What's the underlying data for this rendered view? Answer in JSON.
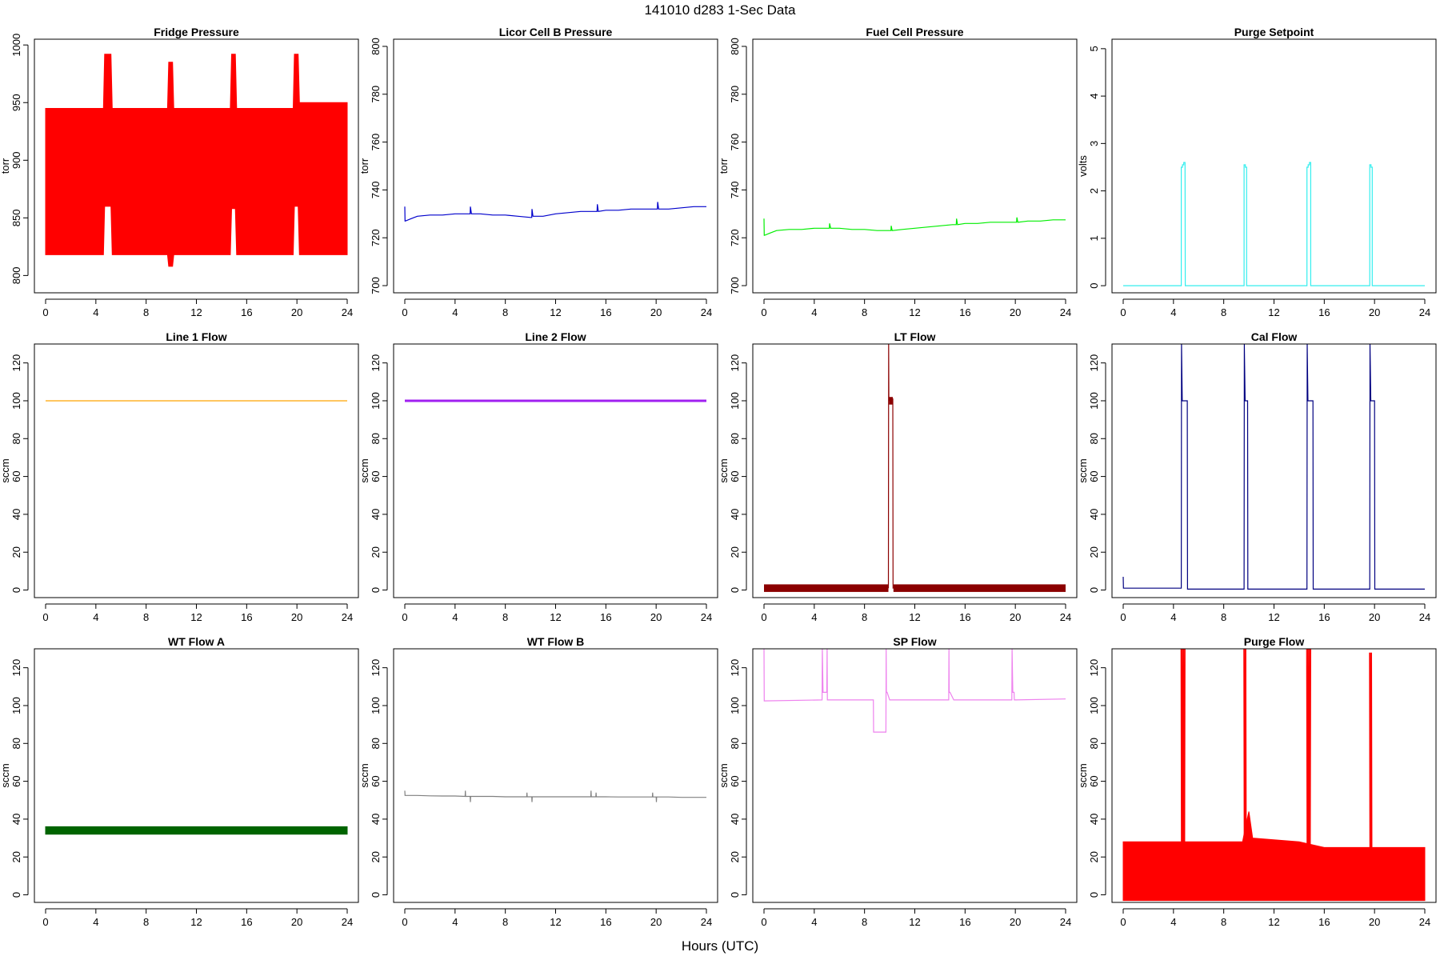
{
  "figure": {
    "title": "141010   d283   1-Sec Data",
    "xlabel": "Hours (UTC)"
  },
  "chart_data": [
    {
      "type": "line",
      "title": "Fridge Pressure",
      "ylabel": "torr",
      "color": "#ff0000",
      "xlim": [
        0,
        24
      ],
      "ylim": [
        785,
        1005
      ],
      "xticks": [
        0,
        4,
        8,
        12,
        16,
        20,
        24
      ],
      "yticks": [
        800,
        850,
        900,
        950,
        1000
      ],
      "band": {
        "low": [
          [
            0,
            818
          ],
          [
            4.6,
            818
          ],
          [
            4.7,
            860
          ],
          [
            5.2,
            860
          ],
          [
            5.3,
            818
          ],
          [
            9.7,
            818
          ],
          [
            9.8,
            808
          ],
          [
            10.1,
            808
          ],
          [
            10.2,
            818
          ],
          [
            14.7,
            818
          ],
          [
            14.8,
            858
          ],
          [
            15.1,
            858
          ],
          [
            15.2,
            818
          ],
          [
            19.7,
            818
          ],
          [
            19.8,
            860
          ],
          [
            20.1,
            860
          ],
          [
            20.2,
            818
          ],
          [
            24,
            818
          ]
        ],
        "high": [
          [
            0,
            945
          ],
          [
            4.6,
            945
          ],
          [
            4.7,
            992
          ],
          [
            5.2,
            992
          ],
          [
            5.3,
            945
          ],
          [
            9.7,
            945
          ],
          [
            9.8,
            985
          ],
          [
            10.1,
            985
          ],
          [
            10.2,
            945
          ],
          [
            14.7,
            945
          ],
          [
            14.8,
            992
          ],
          [
            15.1,
            992
          ],
          [
            15.2,
            945
          ],
          [
            19.7,
            945
          ],
          [
            19.8,
            992
          ],
          [
            20.1,
            992
          ],
          [
            20.2,
            950
          ],
          [
            24,
            950
          ]
        ]
      },
      "series": []
    },
    {
      "type": "line",
      "title": "Licor Cell B Pressure",
      "ylabel": "torr",
      "color": "#0000cc",
      "xlim": [
        0,
        24
      ],
      "ylim": [
        697,
        803
      ],
      "xticks": [
        0,
        4,
        8,
        12,
        16,
        20,
        24
      ],
      "yticks": [
        700,
        720,
        740,
        760,
        780,
        800
      ],
      "series": [
        {
          "x": [
            0,
            0.02,
            0.04,
            0.5,
            1,
            2,
            3,
            4,
            5,
            5.2,
            5.22,
            5.3,
            6,
            7,
            8,
            9,
            10,
            10.1,
            10.12,
            10.2,
            11,
            12,
            13,
            14,
            15,
            15.3,
            15.32,
            15.4,
            16,
            17,
            18,
            19,
            20,
            20.1,
            20.12,
            20.2,
            21,
            22,
            23,
            24
          ],
          "y": [
            733,
            727,
            727,
            728,
            729,
            729.5,
            729.5,
            730,
            730,
            730,
            733,
            730,
            730,
            729.5,
            729.5,
            729,
            728.5,
            728.5,
            732,
            729,
            729,
            730,
            730.5,
            731,
            731,
            731,
            734,
            731,
            731.5,
            731.5,
            732,
            732,
            732,
            732,
            735,
            732,
            732,
            732.5,
            733,
            733
          ]
        }
      ]
    },
    {
      "type": "line",
      "title": "Fuel Cell Pressure",
      "ylabel": "torr",
      "color": "#00ee00",
      "xlim": [
        0,
        24
      ],
      "ylim": [
        697,
        803
      ],
      "xticks": [
        0,
        4,
        8,
        12,
        16,
        20,
        24
      ],
      "yticks": [
        700,
        720,
        740,
        760,
        780,
        800
      ],
      "series": [
        {
          "x": [
            0,
            0.02,
            0.04,
            0.5,
            1,
            2,
            3,
            4,
            5,
            5.2,
            5.22,
            5.3,
            6,
            7,
            8,
            9,
            10,
            10.1,
            10.12,
            10.2,
            11,
            12,
            13,
            14,
            15,
            15.3,
            15.32,
            15.4,
            16,
            17,
            18,
            19,
            20,
            20.1,
            20.12,
            20.2,
            21,
            22,
            23,
            24
          ],
          "y": [
            728,
            721,
            721,
            722,
            723,
            723.5,
            723.5,
            724,
            724,
            724,
            726,
            724,
            724,
            723.5,
            723.5,
            723,
            723,
            723,
            725,
            723,
            723.5,
            724,
            724.5,
            725,
            725.5,
            725.5,
            728,
            725.5,
            726,
            726,
            726.5,
            726.5,
            726.5,
            726.5,
            728.5,
            726.5,
            727,
            727,
            727.5,
            727.5
          ]
        }
      ]
    },
    {
      "type": "line",
      "title": "Purge Setpoint",
      "ylabel": "volts",
      "color": "#33eeee",
      "xlim": [
        0,
        24
      ],
      "ylim": [
        -0.15,
        5.2
      ],
      "xticks": [
        0,
        4,
        8,
        12,
        16,
        20,
        24
      ],
      "yticks": [
        0,
        1,
        2,
        3,
        4,
        5
      ],
      "series": [
        {
          "x": [
            0,
            4.6,
            4.62,
            4.62,
            4.72,
            4.72,
            4.82,
            4.82,
            4.92,
            4.92,
            4.94,
            9.6,
            9.62,
            9.62,
            9.72,
            9.72,
            9.82,
            9.82,
            9.84,
            14.6,
            14.62,
            14.62,
            14.72,
            14.72,
            14.82,
            14.82,
            14.92,
            14.92,
            14.94,
            19.6,
            19.62,
            19.62,
            19.72,
            19.72,
            19.82,
            19.82,
            19.84,
            24
          ],
          "y": [
            0,
            0,
            0,
            2.5,
            2.5,
            2.55,
            2.55,
            2.6,
            2.6,
            2.6,
            0,
            0,
            0,
            2.55,
            2.55,
            2.5,
            2.5,
            0,
            0,
            0,
            0,
            2.5,
            2.5,
            2.55,
            2.55,
            2.6,
            2.6,
            0,
            0,
            0,
            0,
            2.55,
            2.55,
            2.5,
            2.5,
            0,
            0,
            0
          ]
        }
      ]
    },
    {
      "type": "line",
      "title": "Line 1 Flow",
      "ylabel": "sccm",
      "color": "#ffa500",
      "xlim": [
        0,
        24
      ],
      "ylim": [
        -4,
        130
      ],
      "xticks": [
        0,
        4,
        8,
        12,
        16,
        20,
        24
      ],
      "yticks": [
        0,
        20,
        40,
        60,
        80,
        100,
        120
      ],
      "series": [
        {
          "x": [
            0,
            24
          ],
          "y": [
            100,
            100
          ]
        }
      ]
    },
    {
      "type": "line",
      "title": "Line 2 Flow",
      "ylabel": "sccm",
      "color": "#a020f0",
      "width": 3,
      "xlim": [
        0,
        24
      ],
      "ylim": [
        -4,
        130
      ],
      "xticks": [
        0,
        4,
        8,
        12,
        16,
        20,
        24
      ],
      "yticks": [
        0,
        20,
        40,
        60,
        80,
        100,
        120
      ],
      "series": [
        {
          "x": [
            0,
            24
          ],
          "y": [
            100,
            100
          ]
        }
      ]
    },
    {
      "type": "line",
      "title": "LT Flow",
      "ylabel": "sccm",
      "color": "#8b0000",
      "xlim": [
        0,
        24
      ],
      "ylim": [
        -4,
        130
      ],
      "xticks": [
        0,
        4,
        8,
        12,
        16,
        20,
        24
      ],
      "yticks": [
        0,
        20,
        40,
        60,
        80,
        100,
        120
      ],
      "band": {
        "low": [
          [
            0,
            -1
          ],
          [
            24,
            -1
          ]
        ],
        "high": [
          [
            0,
            3
          ],
          [
            24,
            3
          ]
        ],
        "gap": [
          9.9,
          10.3
        ]
      },
      "series": [
        {
          "x": [
            9.9,
            9.92,
            9.94,
            9.96,
            10.25,
            10.27,
            10.3
          ],
          "y": [
            1,
            130,
            100,
            101,
            101,
            1,
            1
          ]
        }
      ],
      "rects": [
        {
          "x0": 9.95,
          "x1": 10.25,
          "y0": 98,
          "y1": 102
        }
      ]
    },
    {
      "type": "line",
      "title": "Cal Flow",
      "ylabel": "sccm",
      "color": "#000080",
      "xlim": [
        0,
        24
      ],
      "ylim": [
        -4,
        130
      ],
      "xticks": [
        0,
        4,
        8,
        12,
        16,
        20,
        24
      ],
      "yticks": [
        0,
        20,
        40,
        60,
        80,
        100,
        120
      ],
      "series": [
        {
          "x": [
            0,
            0.02,
            0.04,
            4.6,
            4.62,
            4.64,
            4.7,
            4.8,
            5.1,
            5.12,
            5.14,
            9.6,
            9.62,
            9.64,
            9.7,
            9.9,
            9.92,
            14.6,
            14.62,
            14.64,
            14.7,
            14.9,
            15.1,
            15.12,
            15.14,
            19.6,
            19.62,
            19.64,
            19.7,
            20,
            20.02,
            24
          ],
          "y": [
            7,
            1,
            1,
            1,
            1,
            130,
            100,
            100,
            100,
            0.5,
            0.5,
            0.5,
            0.5,
            130,
            100,
            100,
            0.5,
            0.5,
            0.5,
            130,
            100,
            100,
            100,
            0.5,
            0.5,
            0.5,
            0.5,
            130,
            100,
            100,
            0.5,
            0.5
          ]
        }
      ]
    },
    {
      "type": "line",
      "title": "WT Flow A",
      "ylabel": "sccm",
      "color": "#006400",
      "xlim": [
        0,
        24
      ],
      "ylim": [
        -4,
        130
      ],
      "xticks": [
        0,
        4,
        8,
        12,
        16,
        20,
        24
      ],
      "yticks": [
        0,
        20,
        40,
        60,
        80,
        100,
        120
      ],
      "band": {
        "low": [
          [
            0,
            32
          ],
          [
            24,
            32
          ]
        ],
        "high": [
          [
            0,
            36
          ],
          [
            24,
            36
          ]
        ]
      },
      "series": []
    },
    {
      "type": "line",
      "title": "WT Flow B",
      "ylabel": "sccm",
      "color": "#808080",
      "xlim": [
        0,
        24
      ],
      "ylim": [
        -4,
        130
      ],
      "xticks": [
        0,
        4,
        8,
        12,
        16,
        20,
        24
      ],
      "yticks": [
        0,
        20,
        40,
        60,
        80,
        100,
        120
      ],
      "series": [
        {
          "x": [
            0,
            0.02,
            0.04,
            1,
            2,
            3,
            4,
            4.8,
            4.82,
            4.84,
            5.2,
            5.22,
            5.24,
            6,
            7,
            8,
            9,
            9.7,
            9.72,
            9.74,
            10.1,
            10.12,
            10.14,
            11,
            12,
            13,
            14,
            14.8,
            14.82,
            14.84,
            15.2,
            15.22,
            15.24,
            16,
            17,
            18,
            19,
            19.7,
            19.72,
            19.74,
            20,
            20.02,
            20.04,
            21,
            22,
            23,
            24
          ],
          "y": [
            55,
            52.5,
            52.5,
            52.5,
            52.3,
            52.2,
            52.2,
            52,
            55,
            52,
            52,
            49,
            52,
            52,
            52,
            51.8,
            51.8,
            51.8,
            54,
            51.8,
            51.8,
            49,
            51.8,
            51.8,
            51.8,
            51.8,
            51.8,
            51.8,
            55,
            51.8,
            51.8,
            54,
            51.8,
            51.8,
            51.7,
            51.7,
            51.7,
            51.7,
            54,
            51.7,
            51.7,
            49,
            51.7,
            51.7,
            51.5,
            51.5,
            51.5
          ]
        }
      ]
    },
    {
      "type": "line",
      "title": "SP Flow",
      "ylabel": "sccm",
      "color": "#ee82ee",
      "xlim": [
        0,
        24
      ],
      "ylim": [
        -4,
        130
      ],
      "xticks": [
        0,
        4,
        8,
        12,
        16,
        20,
        24
      ],
      "yticks": [
        0,
        20,
        40,
        60,
        80,
        100,
        120
      ],
      "series": [
        {
          "x": [
            0,
            0.02,
            0.04,
            4.6,
            4.62,
            4.64,
            4.7,
            5.0,
            5.02,
            5.04,
            8.7,
            8.72,
            9.7,
            9.72,
            9.74,
            9.8,
            10.0,
            10.02,
            10.04,
            14.7,
            14.72,
            14.74,
            14.8,
            15.1,
            15.12,
            15.14,
            19.7,
            19.72,
            19.74,
            19.8,
            19.9,
            19.92,
            19.94,
            24
          ],
          "y": [
            130,
            102.5,
            102.5,
            103,
            103,
            130,
            107,
            107,
            130,
            103,
            103,
            86,
            86,
            130,
            107,
            107,
            103,
            103,
            103,
            103,
            130,
            107,
            107,
            103,
            103,
            103,
            103,
            103,
            130,
            107,
            107,
            103,
            103,
            103.5
          ]
        }
      ]
    },
    {
      "type": "line",
      "title": "Purge Flow",
      "ylabel": "sccm",
      "color": "#ff0000",
      "xlim": [
        0,
        24
      ],
      "ylim": [
        -4,
        130
      ],
      "xticks": [
        0,
        4,
        8,
        12,
        16,
        20,
        24
      ],
      "yticks": [
        0,
        20,
        40,
        60,
        80,
        100,
        120
      ],
      "band": {
        "low": [
          [
            0,
            -3
          ],
          [
            24,
            -3
          ]
        ],
        "high": [
          [
            0,
            28
          ],
          [
            9.5,
            28
          ],
          [
            9.8,
            38
          ],
          [
            10.0,
            44
          ],
          [
            10.3,
            30
          ],
          [
            14,
            28
          ],
          [
            16,
            25
          ],
          [
            24,
            25
          ]
        ]
      },
      "series": [
        {
          "x": [
            4.6,
            4.64,
            4.68,
            4.72,
            4.76,
            4.8,
            4.84,
            4.88,
            4.92
          ],
          "y": [
            130,
            -3,
            130,
            -3,
            130,
            -3,
            130,
            -3,
            130
          ]
        },
        {
          "x": [
            9.6,
            9.64,
            9.68,
            9.72,
            9.76,
            9.8
          ],
          "y": [
            130,
            -3,
            130,
            -3,
            130,
            -3
          ]
        },
        {
          "x": [
            14.6,
            14.64,
            14.68,
            14.72,
            14.76,
            14.8,
            14.84,
            14.88,
            14.92
          ],
          "y": [
            130,
            -3,
            130,
            -3,
            130,
            -3,
            130,
            -3,
            130
          ]
        },
        {
          "x": [
            19.6,
            19.64,
            19.68,
            19.72,
            19.76,
            19.8
          ],
          "y": [
            128,
            -3,
            128,
            -3,
            128,
            -3
          ]
        }
      ]
    }
  ]
}
